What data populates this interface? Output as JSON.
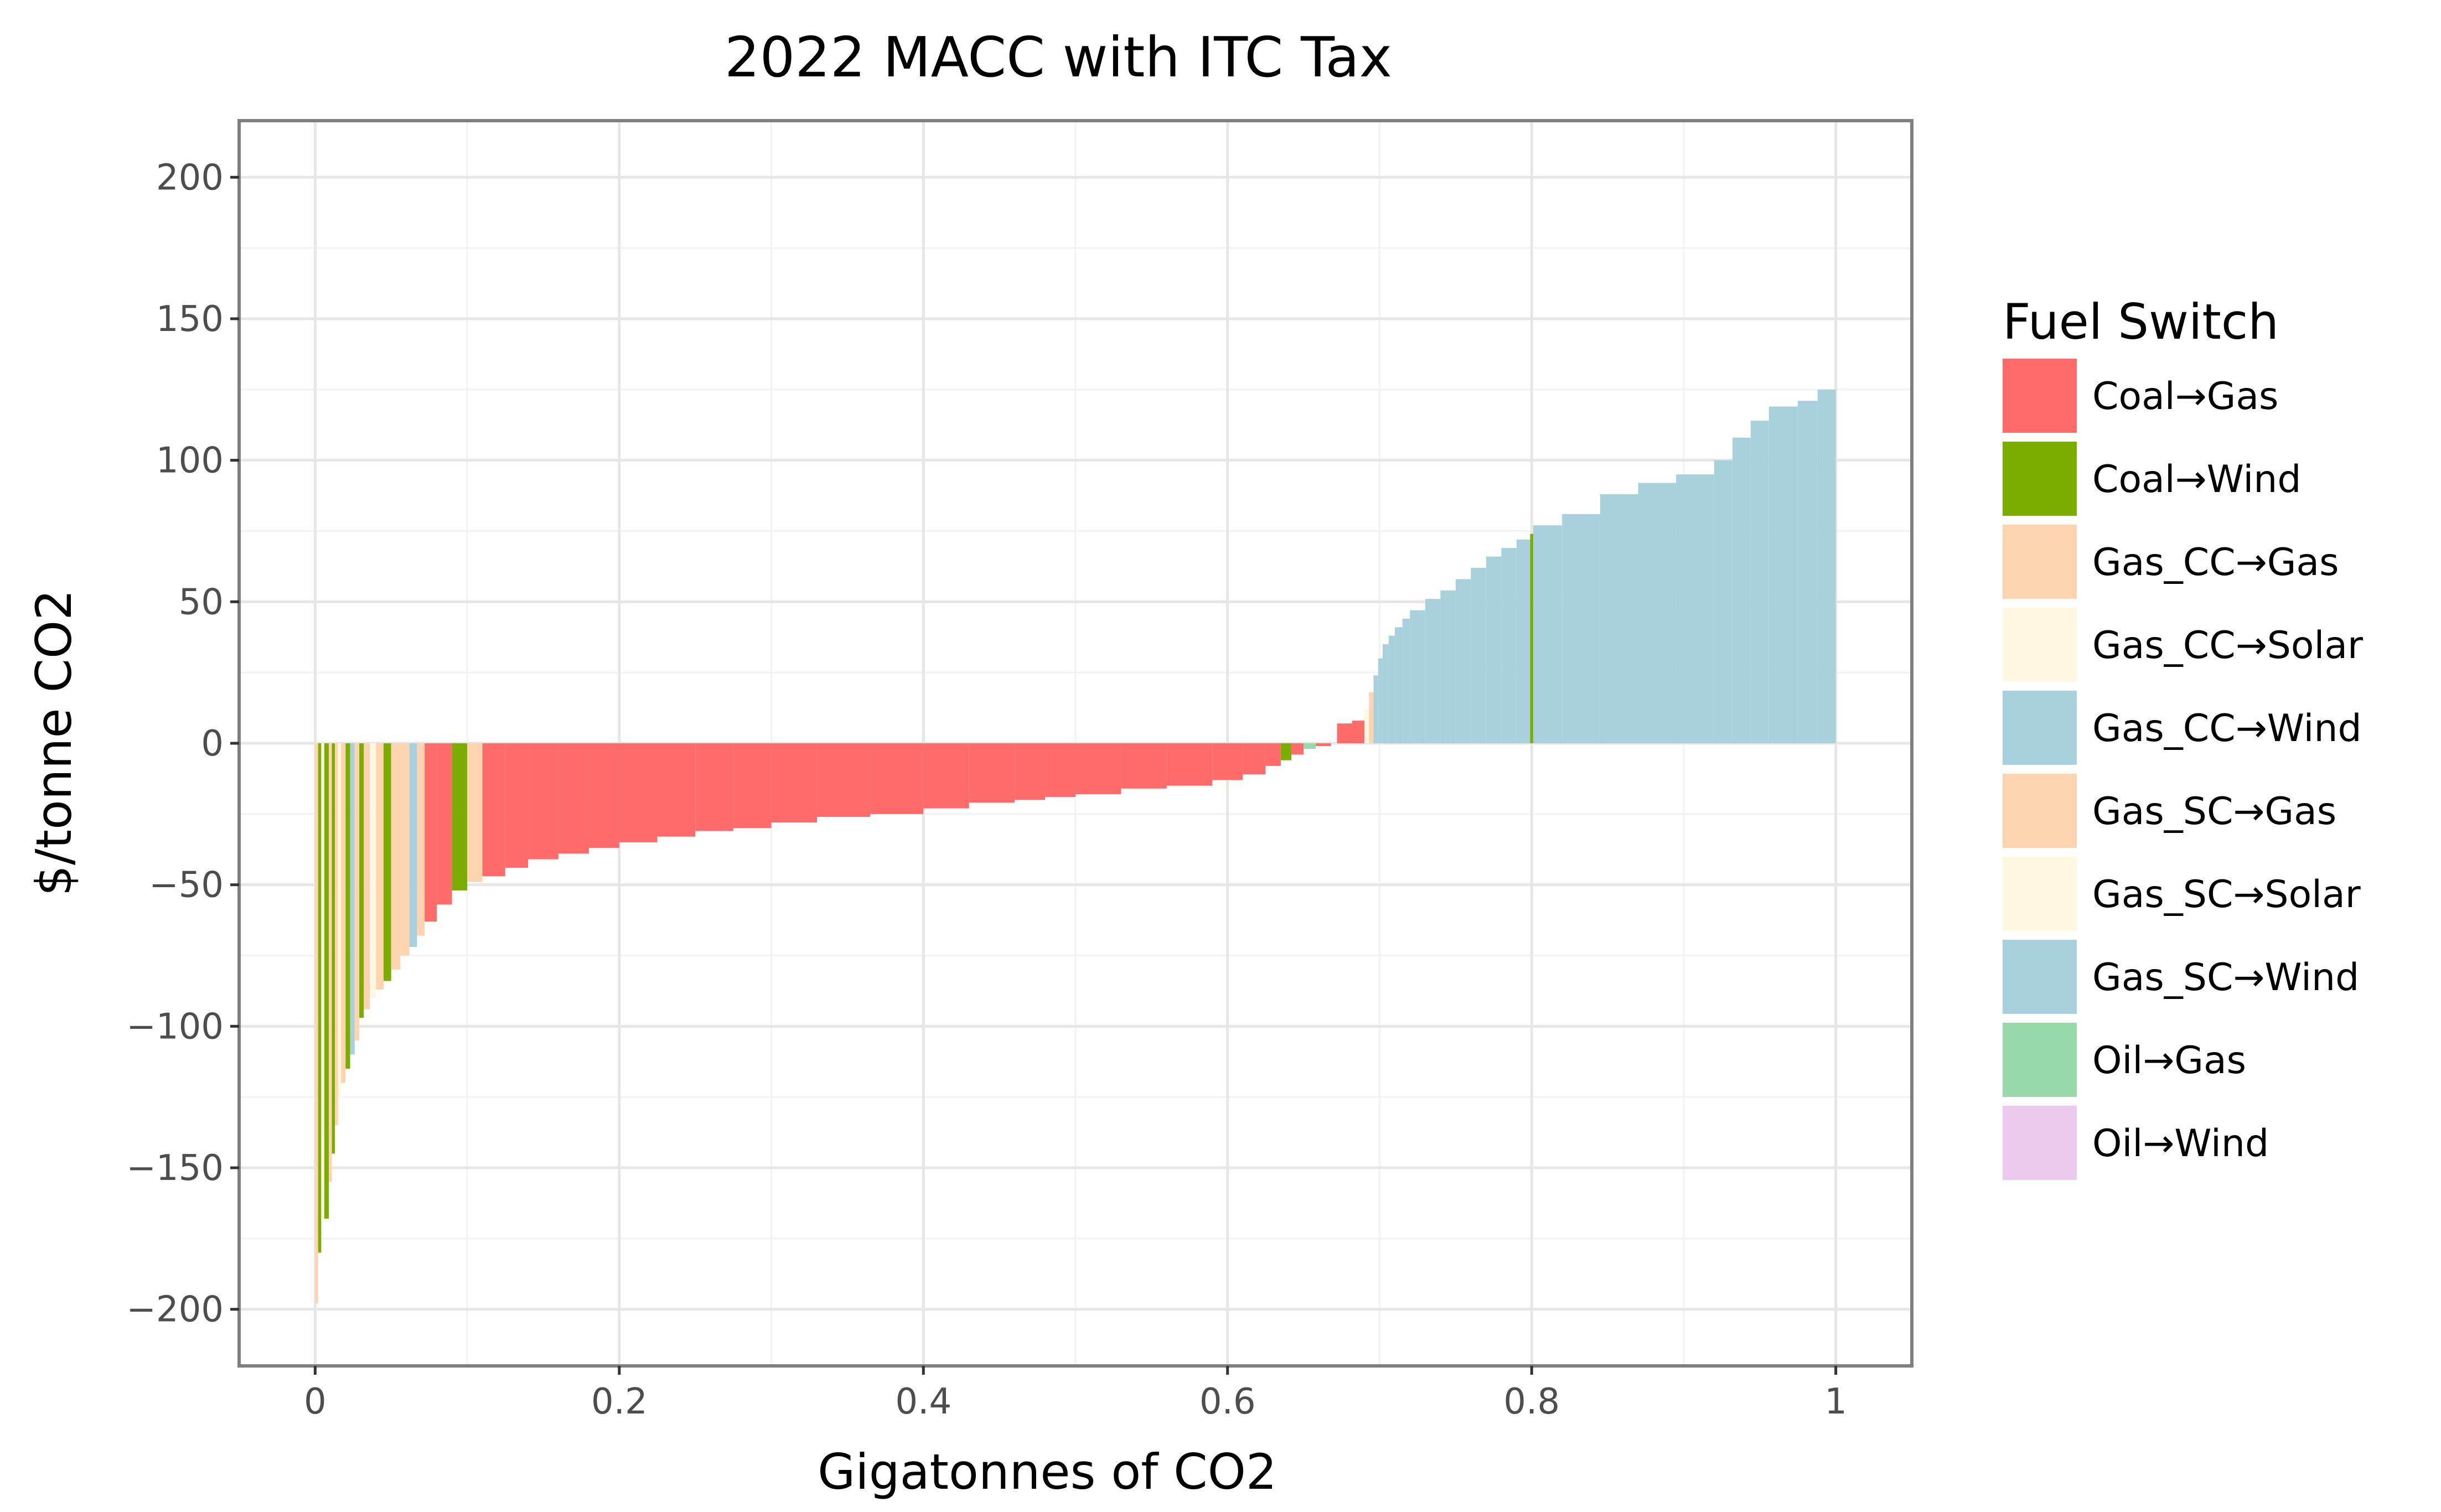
{
  "chart_data": {
    "type": "bar",
    "title": "2022 MACC with ITC Tax",
    "xlabel": "Gigatonnes of CO2",
    "ylabel": "$/tonne CO2",
    "xlim": [
      -0.05,
      1.05
    ],
    "ylim": [
      -220,
      220
    ],
    "x_ticks": [
      0,
      0.2,
      0.4,
      0.6,
      0.8,
      1
    ],
    "x_tick_labels": [
      "0",
      "0.2",
      "0.4",
      "0.6",
      "0.8",
      "1"
    ],
    "y_ticks": [
      200,
      150,
      100,
      50,
      0,
      -50,
      -100,
      -150,
      -200
    ],
    "y_tick_labels": [
      "200",
      "150",
      "100",
      "50",
      "0",
      "−50",
      "−100",
      "−150",
      "−200"
    ],
    "grid": true,
    "legend": {
      "title": "Fuel Switch",
      "placement": "right",
      "entries": [
        {
          "label": "Coal→Gas",
          "color": "#ff6b6b"
        },
        {
          "label": "Coal→Wind",
          "color": "#7bad00"
        },
        {
          "label": "Gas_CC→Gas",
          "color": "#fdd3b0"
        },
        {
          "label": "Gas_CC→Solar",
          "color": "#fef8e1"
        },
        {
          "label": "Gas_CC→Wind",
          "color": "#a9d1dd"
        },
        {
          "label": "Gas_SC→Gas",
          "color": "#fdd3b0"
        },
        {
          "label": "Gas_SC→Solar",
          "color": "#fef8e1"
        },
        {
          "label": "Gas_SC→Wind",
          "color": "#a9d1dd"
        },
        {
          "label": "Oil→Gas",
          "color": "#98d9a9"
        },
        {
          "label": "Oil→Wind",
          "color": "#ecc9ef"
        }
      ]
    },
    "bars": [
      {
        "x0": 0.0,
        "x1": 0.002,
        "y": -198,
        "series": "Gas_CC→Gas"
      },
      {
        "x0": 0.002,
        "x1": 0.004,
        "y": -180,
        "series": "Coal→Wind"
      },
      {
        "x0": 0.004,
        "x1": 0.006,
        "y": -168,
        "series": "Gas_CC→Solar"
      },
      {
        "x0": 0.006,
        "x1": 0.009,
        "y": -168,
        "series": "Coal→Wind"
      },
      {
        "x0": 0.009,
        "x1": 0.011,
        "y": -155,
        "series": "Gas_CC→Gas"
      },
      {
        "x0": 0.011,
        "x1": 0.013,
        "y": -145,
        "series": "Coal→Wind"
      },
      {
        "x0": 0.013,
        "x1": 0.015,
        "y": -135,
        "series": "Gas_CC→Gas"
      },
      {
        "x0": 0.015,
        "x1": 0.017,
        "y": -125,
        "series": "Gas_SC→Solar"
      },
      {
        "x0": 0.017,
        "x1": 0.02,
        "y": -120,
        "series": "Gas_CC→Gas"
      },
      {
        "x0": 0.02,
        "x1": 0.023,
        "y": -115,
        "series": "Coal→Wind"
      },
      {
        "x0": 0.023,
        "x1": 0.026,
        "y": -110,
        "series": "Gas_CC→Wind"
      },
      {
        "x0": 0.026,
        "x1": 0.029,
        "y": -105,
        "series": "Gas_CC→Gas"
      },
      {
        "x0": 0.029,
        "x1": 0.032,
        "y": -97,
        "series": "Coal→Wind"
      },
      {
        "x0": 0.032,
        "x1": 0.036,
        "y": -94,
        "series": "Gas_CC→Gas"
      },
      {
        "x0": 0.036,
        "x1": 0.04,
        "y": -90,
        "series": "Gas_CC→Solar"
      },
      {
        "x0": 0.04,
        "x1": 0.045,
        "y": -87,
        "series": "Gas_CC→Gas"
      },
      {
        "x0": 0.045,
        "x1": 0.05,
        "y": -84,
        "series": "Coal→Wind"
      },
      {
        "x0": 0.05,
        "x1": 0.056,
        "y": -80,
        "series": "Gas_SC→Gas"
      },
      {
        "x0": 0.056,
        "x1": 0.062,
        "y": -75,
        "series": "Gas_CC→Gas"
      },
      {
        "x0": 0.062,
        "x1": 0.067,
        "y": -72,
        "series": "Gas_CC→Wind"
      },
      {
        "x0": 0.067,
        "x1": 0.072,
        "y": -68,
        "series": "Gas_CC→Gas"
      },
      {
        "x0": 0.072,
        "x1": 0.08,
        "y": -63,
        "series": "Coal→Gas"
      },
      {
        "x0": 0.08,
        "x1": 0.09,
        "y": -57,
        "series": "Coal→Gas"
      },
      {
        "x0": 0.09,
        "x1": 0.1,
        "y": -52,
        "series": "Coal→Wind"
      },
      {
        "x0": 0.1,
        "x1": 0.11,
        "y": -49,
        "series": "Gas_CC→Gas"
      },
      {
        "x0": 0.11,
        "x1": 0.125,
        "y": -47,
        "series": "Coal→Gas"
      },
      {
        "x0": 0.125,
        "x1": 0.14,
        "y": -44,
        "series": "Coal→Gas"
      },
      {
        "x0": 0.14,
        "x1": 0.16,
        "y": -41,
        "series": "Coal→Gas"
      },
      {
        "x0": 0.16,
        "x1": 0.18,
        "y": -39,
        "series": "Coal→Gas"
      },
      {
        "x0": 0.18,
        "x1": 0.2,
        "y": -37,
        "series": "Coal→Gas"
      },
      {
        "x0": 0.2,
        "x1": 0.225,
        "y": -35,
        "series": "Coal→Gas"
      },
      {
        "x0": 0.225,
        "x1": 0.25,
        "y": -33,
        "series": "Coal→Gas"
      },
      {
        "x0": 0.25,
        "x1": 0.275,
        "y": -31,
        "series": "Coal→Gas"
      },
      {
        "x0": 0.275,
        "x1": 0.3,
        "y": -30,
        "series": "Coal→Gas"
      },
      {
        "x0": 0.3,
        "x1": 0.33,
        "y": -28,
        "series": "Coal→Gas"
      },
      {
        "x0": 0.33,
        "x1": 0.365,
        "y": -26,
        "series": "Coal→Gas"
      },
      {
        "x0": 0.365,
        "x1": 0.4,
        "y": -25,
        "series": "Coal→Gas"
      },
      {
        "x0": 0.4,
        "x1": 0.43,
        "y": -23,
        "series": "Coal→Gas"
      },
      {
        "x0": 0.43,
        "x1": 0.46,
        "y": -21,
        "series": "Coal→Gas"
      },
      {
        "x0": 0.46,
        "x1": 0.48,
        "y": -20,
        "series": "Coal→Gas"
      },
      {
        "x0": 0.48,
        "x1": 0.5,
        "y": -19,
        "series": "Coal→Gas"
      },
      {
        "x0": 0.5,
        "x1": 0.53,
        "y": -18,
        "series": "Coal→Gas"
      },
      {
        "x0": 0.53,
        "x1": 0.56,
        "y": -16,
        "series": "Coal→Gas"
      },
      {
        "x0": 0.56,
        "x1": 0.59,
        "y": -15,
        "series": "Coal→Gas"
      },
      {
        "x0": 0.59,
        "x1": 0.61,
        "y": -13,
        "series": "Coal→Gas"
      },
      {
        "x0": 0.61,
        "x1": 0.625,
        "y": -11,
        "series": "Coal→Gas"
      },
      {
        "x0": 0.625,
        "x1": 0.635,
        "y": -8,
        "series": "Coal→Gas"
      },
      {
        "x0": 0.635,
        "x1": 0.642,
        "y": -6,
        "series": "Coal→Wind"
      },
      {
        "x0": 0.642,
        "x1": 0.65,
        "y": -4,
        "series": "Coal→Gas"
      },
      {
        "x0": 0.65,
        "x1": 0.658,
        "y": -2,
        "series": "Oil→Gas"
      },
      {
        "x0": 0.658,
        "x1": 0.668,
        "y": -1,
        "series": "Coal→Gas"
      },
      {
        "x0": 0.672,
        "x1": 0.682,
        "y": 7,
        "series": "Coal→Gas"
      },
      {
        "x0": 0.682,
        "x1": 0.69,
        "y": 8,
        "series": "Coal→Gas"
      },
      {
        "x0": 0.69,
        "x1": 0.693,
        "y": 12,
        "series": "Gas_CC→Solar"
      },
      {
        "x0": 0.693,
        "x1": 0.696,
        "y": 18,
        "series": "Gas_CC→Gas"
      },
      {
        "x0": 0.696,
        "x1": 0.699,
        "y": 24,
        "series": "Gas_CC→Wind"
      },
      {
        "x0": 0.699,
        "x1": 0.702,
        "y": 30,
        "series": "Gas_CC→Wind"
      },
      {
        "x0": 0.702,
        "x1": 0.706,
        "y": 35,
        "series": "Gas_CC→Wind"
      },
      {
        "x0": 0.706,
        "x1": 0.71,
        "y": 38,
        "series": "Gas_CC→Wind"
      },
      {
        "x0": 0.71,
        "x1": 0.715,
        "y": 41,
        "series": "Gas_CC→Wind"
      },
      {
        "x0": 0.715,
        "x1": 0.72,
        "y": 44,
        "series": "Gas_CC→Wind"
      },
      {
        "x0": 0.72,
        "x1": 0.73,
        "y": 47,
        "series": "Gas_CC→Wind"
      },
      {
        "x0": 0.73,
        "x1": 0.74,
        "y": 51,
        "series": "Gas_CC→Wind"
      },
      {
        "x0": 0.74,
        "x1": 0.75,
        "y": 54,
        "series": "Gas_CC→Wind"
      },
      {
        "x0": 0.75,
        "x1": 0.76,
        "y": 58,
        "series": "Gas_CC→Wind"
      },
      {
        "x0": 0.76,
        "x1": 0.77,
        "y": 62,
        "series": "Gas_CC→Wind"
      },
      {
        "x0": 0.77,
        "x1": 0.78,
        "y": 66,
        "series": "Gas_CC→Wind"
      },
      {
        "x0": 0.78,
        "x1": 0.79,
        "y": 69,
        "series": "Gas_CC→Wind"
      },
      {
        "x0": 0.79,
        "x1": 0.799,
        "y": 72,
        "series": "Gas_CC→Wind"
      },
      {
        "x0": 0.799,
        "x1": 0.801,
        "y": 74,
        "series": "Coal→Wind"
      },
      {
        "x0": 0.801,
        "x1": 0.82,
        "y": 77,
        "series": "Gas_CC→Wind"
      },
      {
        "x0": 0.82,
        "x1": 0.845,
        "y": 81,
        "series": "Gas_CC→Wind"
      },
      {
        "x0": 0.845,
        "x1": 0.87,
        "y": 88,
        "series": "Gas_CC→Wind"
      },
      {
        "x0": 0.87,
        "x1": 0.895,
        "y": 92,
        "series": "Gas_CC→Wind"
      },
      {
        "x0": 0.895,
        "x1": 0.92,
        "y": 95,
        "series": "Gas_CC→Wind"
      },
      {
        "x0": 0.92,
        "x1": 0.932,
        "y": 100,
        "series": "Gas_CC→Wind"
      },
      {
        "x0": 0.932,
        "x1": 0.944,
        "y": 108,
        "series": "Gas_CC→Wind"
      },
      {
        "x0": 0.944,
        "x1": 0.956,
        "y": 114,
        "series": "Gas_CC→Wind"
      },
      {
        "x0": 0.956,
        "x1": 0.975,
        "y": 119,
        "series": "Gas_CC→Wind"
      },
      {
        "x0": 0.975,
        "x1": 0.988,
        "y": 121,
        "series": "Gas_CC→Wind"
      },
      {
        "x0": 0.988,
        "x1": 1.0,
        "y": 125,
        "series": "Gas_CC→Wind"
      }
    ]
  }
}
